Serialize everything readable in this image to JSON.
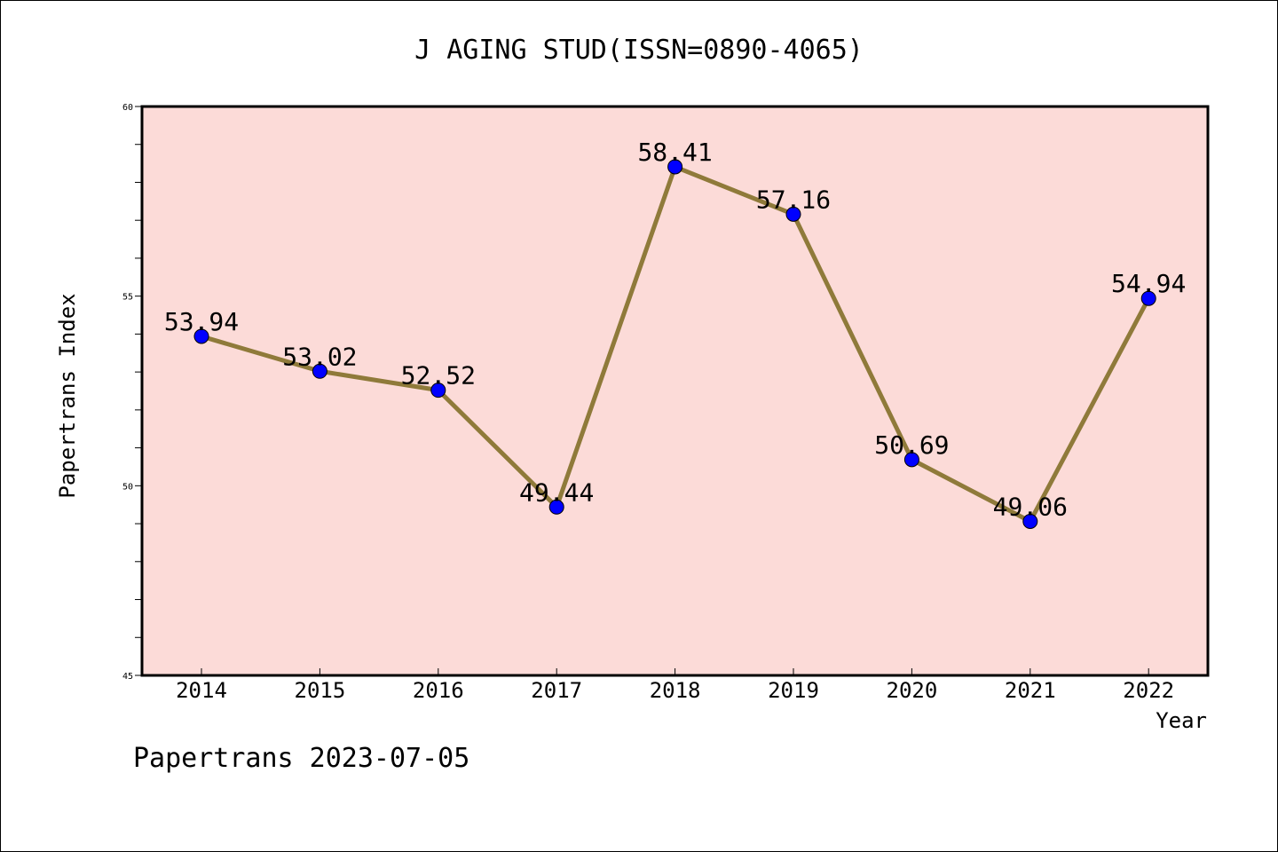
{
  "chart_data": {
    "type": "line",
    "title": "J AGING STUD(ISSN=0890-4065)",
    "xlabel": "Year",
    "ylabel": "Papertrans Index",
    "categories": [
      "2014",
      "2015",
      "2016",
      "2017",
      "2018",
      "2019",
      "2020",
      "2021",
      "2022"
    ],
    "values": [
      53.94,
      53.02,
      52.52,
      49.44,
      58.41,
      57.16,
      50.69,
      49.06,
      54.94
    ],
    "value_labels": [
      "53.94",
      "53.02",
      "52.52",
      "49.44",
      "58.41",
      "57.16",
      "50.69",
      "49.06",
      "54.94"
    ],
    "ylim": [
      45,
      60
    ],
    "y_major_ticks": [
      45,
      50,
      55,
      60
    ],
    "y_minor_step": 1,
    "grid": false,
    "footer": "Papertrans 2023-07-05",
    "colors": {
      "plot_background": "#fcdbd8",
      "line": "#8f7a3a",
      "marker": "#0000ff",
      "axes": "#000000"
    }
  }
}
